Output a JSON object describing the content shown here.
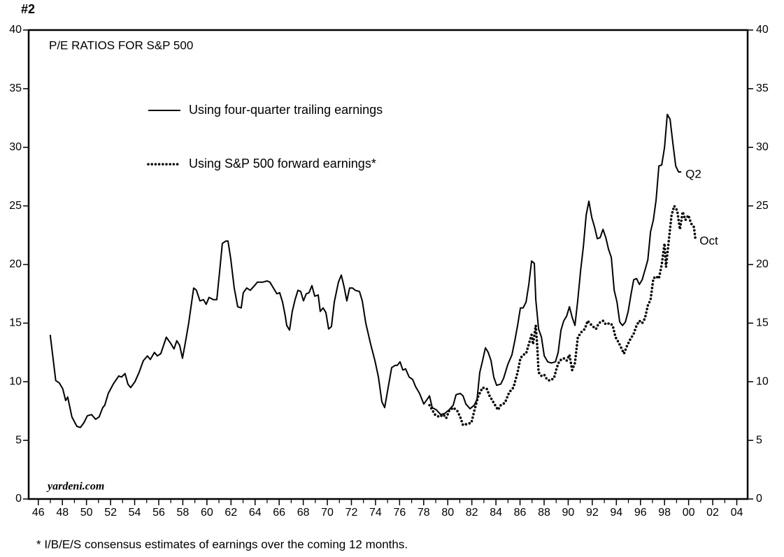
{
  "page_label": "#2",
  "footnote": "* I/B/E/S consensus estimates of earnings over the coming 12 months.",
  "chart_data": {
    "type": "line",
    "title": "P/E RATIOS FOR S&P 500",
    "source": "yardeni.com",
    "xlim": [
      1945.2,
      2004.9
    ],
    "ylim": [
      0,
      40
    ],
    "y2lim": [
      0,
      40
    ],
    "yticks": [
      0,
      5,
      10,
      15,
      20,
      25,
      30,
      35,
      40
    ],
    "y2ticks": [
      0,
      5,
      10,
      15,
      20,
      25,
      30,
      35,
      40
    ],
    "xticks": [
      {
        "value": 1946,
        "label": "46"
      },
      {
        "value": 1948,
        "label": "48"
      },
      {
        "value": 1950,
        "label": "50"
      },
      {
        "value": 1952,
        "label": "52"
      },
      {
        "value": 1954,
        "label": "54"
      },
      {
        "value": 1956,
        "label": "56"
      },
      {
        "value": 1958,
        "label": "58"
      },
      {
        "value": 1960,
        "label": "60"
      },
      {
        "value": 1962,
        "label": "62"
      },
      {
        "value": 1964,
        "label": "64"
      },
      {
        "value": 1966,
        "label": "66"
      },
      {
        "value": 1968,
        "label": "68"
      },
      {
        "value": 1970,
        "label": "70"
      },
      {
        "value": 1972,
        "label": "72"
      },
      {
        "value": 1974,
        "label": "74"
      },
      {
        "value": 1976,
        "label": "76"
      },
      {
        "value": 1978,
        "label": "78"
      },
      {
        "value": 1980,
        "label": "80"
      },
      {
        "value": 1982,
        "label": "82"
      },
      {
        "value": 1984,
        "label": "84"
      },
      {
        "value": 1986,
        "label": "86"
      },
      {
        "value": 1988,
        "label": "88"
      },
      {
        "value": 1990,
        "label": "90"
      },
      {
        "value": 1992,
        "label": "92"
      },
      {
        "value": 1994,
        "label": "94"
      },
      {
        "value": 1996,
        "label": "96"
      },
      {
        "value": 1998,
        "label": "98"
      },
      {
        "value": 2000,
        "label": "00"
      },
      {
        "value": 2002,
        "label": "02"
      },
      {
        "value": 2004,
        "label": "04"
      }
    ],
    "xminorticks": [
      1947,
      1949,
      1951,
      1953,
      1955,
      1957,
      1959,
      1961,
      1963,
      1965,
      1967,
      1969,
      1971,
      1973,
      1975,
      1977,
      1979,
      1981,
      1983,
      1985,
      1987,
      1989,
      1991,
      1993,
      1995,
      1997,
      1999,
      2001,
      2003
    ],
    "series": [
      {
        "name": "Using four-quarter trailing earnings",
        "color": "#000000",
        "style": "solid",
        "end_label": "Q2",
        "x": [
          1946.99,
          1947.45,
          1947.74,
          1948.03,
          1948.27,
          1948.44,
          1948.79,
          1949.2,
          1949.49,
          1949.78,
          1950.07,
          1950.42,
          1950.76,
          1951.05,
          1951.35,
          1951.52,
          1951.81,
          1952.22,
          1952.68,
          1952.91,
          1953.2,
          1953.44,
          1953.67,
          1954.02,
          1954.37,
          1954.72,
          1955.06,
          1955.3,
          1955.64,
          1955.88,
          1956.17,
          1956.63,
          1956.98,
          1957.27,
          1957.5,
          1957.74,
          1957.97,
          1958.2,
          1958.49,
          1958.9,
          1959.13,
          1959.42,
          1959.71,
          1959.94,
          1960.18,
          1960.53,
          1960.82,
          1961.11,
          1961.28,
          1961.57,
          1961.75,
          1961.98,
          1962.27,
          1962.56,
          1962.85,
          1963.02,
          1963.31,
          1963.6,
          1963.95,
          1964.19,
          1964.65,
          1965.0,
          1965.23,
          1965.58,
          1965.81,
          1966.04,
          1966.28,
          1966.51,
          1966.63,
          1966.86,
          1967.09,
          1967.32,
          1967.56,
          1967.79,
          1968.02,
          1968.25,
          1968.48,
          1968.72,
          1968.95,
          1969.24,
          1969.41,
          1969.65,
          1969.88,
          1970.11,
          1970.34,
          1970.58,
          1970.92,
          1971.16,
          1971.39,
          1971.62,
          1971.85,
          1972.09,
          1972.32,
          1972.67,
          1972.9,
          1973.19,
          1973.6,
          1973.95,
          1974.24,
          1974.53,
          1974.76,
          1975.05,
          1975.34,
          1975.63,
          1975.81,
          1976.04,
          1976.27,
          1976.5,
          1976.79,
          1977.08,
          1977.32,
          1977.66,
          1978.01,
          1978.36,
          1978.48,
          1978.71,
          1979.06,
          1979.41,
          1979.76,
          1980.1,
          1980.45,
          1980.69,
          1981.03,
          1981.27,
          1981.5,
          1981.85,
          1982.2,
          1982.43,
          1982.66,
          1982.89,
          1983.13,
          1983.36,
          1983.59,
          1983.82,
          1984.06,
          1984.4,
          1984.64,
          1984.99,
          1985.33,
          1985.57,
          1985.8,
          1986.03,
          1986.26,
          1986.5,
          1986.73,
          1986.96,
          1987.19,
          1987.31,
          1987.54,
          1987.78,
          1988.01,
          1988.3,
          1988.59,
          1988.94,
          1989.17,
          1989.4,
          1989.63,
          1989.87,
          1990.1,
          1990.33,
          1990.56,
          1990.8,
          1991.03,
          1991.26,
          1991.49,
          1991.72,
          1991.96,
          1992.19,
          1992.42,
          1992.65,
          1992.89,
          1993.12,
          1993.35,
          1993.58,
          1993.82,
          1994.05,
          1994.28,
          1994.51,
          1994.75,
          1994.98,
          1995.21,
          1995.44,
          1995.68,
          1995.91,
          1996.14,
          1996.37,
          1996.61,
          1996.84,
          1997.07,
          1997.3,
          1997.53,
          1997.77,
          1998.0,
          1998.23,
          1998.46,
          1998.7,
          1998.93,
          1999.16,
          1999.39
        ],
        "values": [
          14.0,
          10.1,
          9.9,
          9.4,
          8.4,
          8.7,
          7.0,
          6.2,
          6.1,
          6.5,
          7.1,
          7.2,
          6.8,
          7.0,
          7.8,
          8.0,
          9.0,
          9.8,
          10.5,
          10.4,
          10.7,
          9.8,
          9.5,
          10.0,
          10.8,
          11.8,
          12.2,
          11.9,
          12.5,
          12.2,
          12.4,
          13.8,
          13.3,
          12.8,
          13.5,
          13.1,
          12.0,
          13.3,
          15.0,
          18.0,
          17.8,
          16.9,
          17.0,
          16.6,
          17.2,
          17.0,
          17.0,
          20.0,
          21.8,
          22.0,
          22.0,
          20.5,
          18.0,
          16.4,
          16.3,
          17.6,
          18.0,
          17.8,
          18.2,
          18.5,
          18.5,
          18.6,
          18.5,
          17.9,
          17.5,
          17.6,
          16.8,
          15.6,
          14.8,
          14.4,
          16.0,
          17.0,
          17.8,
          17.7,
          16.9,
          17.5,
          17.6,
          18.2,
          17.3,
          17.4,
          16.0,
          16.3,
          15.9,
          14.5,
          14.7,
          16.8,
          18.5,
          19.1,
          18.1,
          16.9,
          18.0,
          18.0,
          17.8,
          17.7,
          16.9,
          15.0,
          13.2,
          11.8,
          10.4,
          8.3,
          7.8,
          9.5,
          11.2,
          11.4,
          11.4,
          11.7,
          11.0,
          11.1,
          10.4,
          10.2,
          9.6,
          9.0,
          8.1,
          8.6,
          8.8,
          7.8,
          7.6,
          7.2,
          7.3,
          7.6,
          8.0,
          8.9,
          9.0,
          8.8,
          8.1,
          7.7,
          8.0,
          8.5,
          10.8,
          11.8,
          12.9,
          12.5,
          11.8,
          10.4,
          9.7,
          9.8,
          10.3,
          11.5,
          12.3,
          13.5,
          14.8,
          16.3,
          16.3,
          16.8,
          18.3,
          20.3,
          20.1,
          17.0,
          14.5,
          13.8,
          12.2,
          11.7,
          11.6,
          11.7,
          12.5,
          14.4,
          15.2,
          15.6,
          16.4,
          15.5,
          14.8,
          17.0,
          19.5,
          21.5,
          24.2,
          25.4,
          24.0,
          23.2,
          22.2,
          22.3,
          23.0,
          22.3,
          21.3,
          20.6,
          17.8,
          16.8,
          15.1,
          14.8,
          15.1,
          16.0,
          17.4,
          18.7,
          18.8,
          18.3,
          18.7,
          19.5,
          20.4,
          22.8,
          23.8,
          25.5,
          28.4,
          28.5,
          30.0,
          32.8,
          32.4,
          30.3,
          28.4,
          27.9,
          27.9
        ]
      },
      {
        "name": "Using S&P 500 forward earnings*",
        "color": "#000000",
        "style": "dotted",
        "end_label": "Oct",
        "x": [
          1978.48,
          1978.71,
          1978.94,
          1979.29,
          1979.64,
          1979.87,
          1980.1,
          1980.45,
          1980.8,
          1981.03,
          1981.27,
          1981.62,
          1981.96,
          1982.2,
          1982.54,
          1982.89,
          1983.24,
          1983.47,
          1983.82,
          1984.17,
          1984.4,
          1984.75,
          1985.1,
          1985.45,
          1985.8,
          1986.03,
          1986.26,
          1986.5,
          1986.73,
          1986.96,
          1987.08,
          1987.31,
          1987.43,
          1987.54,
          1987.78,
          1988.01,
          1988.24,
          1988.47,
          1988.82,
          1989.05,
          1989.28,
          1989.63,
          1989.87,
          1990.1,
          1990.33,
          1990.56,
          1990.8,
          1991.14,
          1991.38,
          1991.61,
          1991.96,
          1992.31,
          1992.54,
          1992.89,
          1993.12,
          1993.47,
          1993.7,
          1993.93,
          1994.16,
          1994.4,
          1994.63,
          1994.86,
          1995.09,
          1995.44,
          1995.68,
          1995.91,
          1996.14,
          1996.37,
          1996.61,
          1996.84,
          1997.07,
          1997.3,
          1997.53,
          1997.77,
          1998.0,
          1998.12,
          1998.35,
          1998.58,
          1998.81,
          1999.05,
          1999.28,
          1999.51,
          1999.74,
          1999.98,
          2000.21,
          2000.44,
          2000.56
        ],
        "values": [
          8.0,
          7.6,
          7.2,
          7.0,
          7.2,
          6.9,
          7.5,
          7.8,
          7.5,
          7.0,
          6.3,
          6.4,
          6.5,
          7.5,
          8.8,
          9.5,
          9.4,
          8.8,
          8.2,
          7.6,
          8.0,
          8.2,
          9.1,
          9.5,
          10.8,
          12.0,
          12.3,
          12.4,
          13.2,
          14.0,
          13.2,
          14.8,
          13.0,
          10.8,
          10.5,
          10.6,
          10.2,
          10.1,
          10.3,
          11.2,
          11.8,
          12.0,
          11.8,
          12.3,
          11.0,
          11.6,
          13.8,
          14.3,
          14.5,
          15.2,
          14.8,
          14.5,
          15.0,
          15.2,
          14.9,
          15.0,
          14.8,
          13.8,
          13.4,
          12.9,
          12.4,
          13.0,
          13.5,
          14.1,
          14.8,
          15.2,
          15.0,
          15.4,
          16.5,
          17.0,
          18.8,
          19.0,
          18.8,
          20.0,
          21.8,
          19.8,
          22.0,
          24.2,
          25.0,
          24.6,
          23.0,
          24.5,
          23.8,
          24.2,
          23.5,
          23.2,
          22.2
        ]
      }
    ]
  }
}
